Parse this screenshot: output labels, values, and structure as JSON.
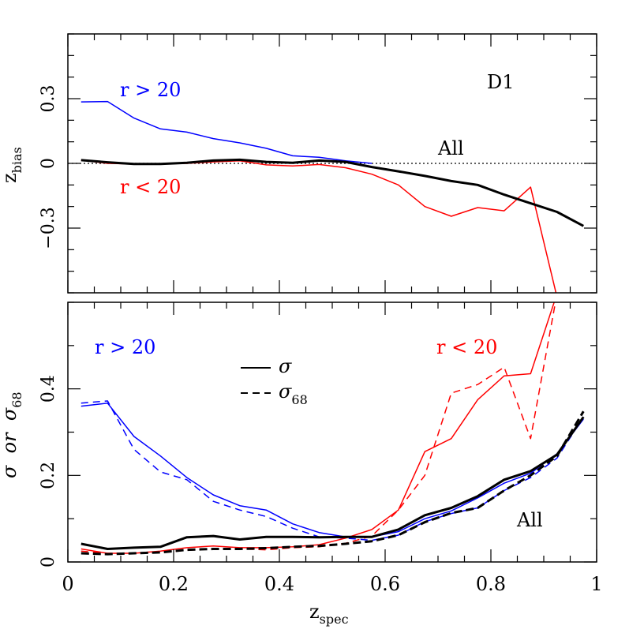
{
  "chart_data": [
    {
      "type": "line",
      "panel": "top",
      "xlabel_main": "z",
      "xlabel_sub": "spec",
      "ylabel_main": "z",
      "ylabel_sub": "bias",
      "xlim": [
        0,
        1
      ],
      "ylim": [
        -0.6,
        0.6
      ],
      "xticks": [
        0,
        0.2,
        0.4,
        0.6,
        0.8,
        1
      ],
      "xtick_labels": [
        "0",
        "0.2",
        "0.4",
        "0.6",
        "0.8",
        "1"
      ],
      "yticks": [
        -0.3,
        0,
        0.3
      ],
      "ytick_labels": [
        "−0.3",
        "0",
        "0.3"
      ],
      "annotations": [
        "D1",
        "r > 20",
        "r < 20",
        "All"
      ],
      "reference_line": {
        "y": 0,
        "style": "dotted"
      },
      "series": [
        {
          "name": "r > 20",
          "color": "#0000ff",
          "x": [
            0.025,
            0.075,
            0.125,
            0.175,
            0.225,
            0.275,
            0.325,
            0.375,
            0.425,
            0.475,
            0.525,
            0.575
          ],
          "y": [
            0.285,
            0.287,
            0.21,
            0.16,
            0.145,
            0.115,
            0.095,
            0.07,
            0.035,
            0.028,
            0.012,
            0.0
          ]
        },
        {
          "name": "r < 20",
          "color": "#ff0000",
          "x": [
            0.025,
            0.075,
            0.125,
            0.175,
            0.225,
            0.275,
            0.325,
            0.375,
            0.425,
            0.475,
            0.525,
            0.575,
            0.625,
            0.675,
            0.725,
            0.775,
            0.825,
            0.875,
            0.925
          ],
          "y": [
            0.015,
            0.0,
            -0.003,
            -0.003,
            0.0,
            0.007,
            0.012,
            -0.007,
            -0.012,
            -0.005,
            -0.02,
            -0.05,
            -0.1,
            -0.2,
            -0.245,
            -0.205,
            -0.22,
            -0.11,
            -0.62
          ]
        },
        {
          "name": "All",
          "color": "#000000",
          "width": 3,
          "x": [
            0.025,
            0.075,
            0.125,
            0.175,
            0.225,
            0.275,
            0.325,
            0.375,
            0.425,
            0.475,
            0.525,
            0.575,
            0.625,
            0.675,
            0.725,
            0.775,
            0.825,
            0.875,
            0.925,
            0.975
          ],
          "y": [
            0.015,
            0.005,
            -0.003,
            -0.003,
            0.003,
            0.013,
            0.017,
            0.007,
            0.003,
            0.013,
            0.007,
            -0.017,
            -0.037,
            -0.058,
            -0.082,
            -0.1,
            -0.145,
            -0.185,
            -0.225,
            -0.29
          ]
        }
      ]
    },
    {
      "type": "line",
      "panel": "bottom",
      "xlabel_main": "z",
      "xlabel_sub": "spec",
      "ylabel_main": "σ  or  σ",
      "ylabel_sub": "68",
      "xlim": [
        0,
        1
      ],
      "ylim": [
        0,
        0.6
      ],
      "xticks": [
        0,
        0.2,
        0.4,
        0.6,
        0.8,
        1
      ],
      "xtick_labels": [
        "0",
        "0.2",
        "0.4",
        "0.6",
        "0.8",
        "1"
      ],
      "yticks": [
        0,
        0.2,
        0.4
      ],
      "ytick_labels": [
        "0",
        "0.2",
        "0.4"
      ],
      "annotations": [
        "r > 20",
        "r < 20",
        "All"
      ],
      "legend": {
        "placement": "top-center",
        "entries": [
          {
            "label_main": "σ",
            "label_sub": "",
            "style": "solid"
          },
          {
            "label_main": "σ",
            "label_sub": "68",
            "style": "dashed"
          }
        ]
      },
      "series": [
        {
          "name": "r > 20 σ",
          "color": "#0000ff",
          "style": "solid",
          "x": [
            0.025,
            0.075,
            0.125,
            0.175,
            0.225,
            0.275,
            0.325,
            0.375,
            0.425,
            0.475,
            0.525,
            0.575,
            0.625,
            0.675,
            0.725,
            0.775,
            0.825,
            0.875,
            0.925,
            0.975
          ],
          "y": [
            0.36,
            0.367,
            0.29,
            0.245,
            0.195,
            0.155,
            0.13,
            0.12,
            0.088,
            0.068,
            0.058,
            0.058,
            0.07,
            0.1,
            0.118,
            0.148,
            0.182,
            0.205,
            0.25,
            0.33
          ]
        },
        {
          "name": "r > 20 σ68",
          "color": "#0000ff",
          "style": "dashed",
          "x": [
            0.025,
            0.075,
            0.125,
            0.175,
            0.225,
            0.275,
            0.325,
            0.375,
            0.425,
            0.475,
            0.525,
            0.575,
            0.625,
            0.675,
            0.725,
            0.775,
            0.825,
            0.875,
            0.925,
            0.975
          ],
          "y": [
            0.367,
            0.372,
            0.26,
            0.208,
            0.19,
            0.14,
            0.12,
            0.105,
            0.078,
            0.058,
            0.055,
            0.05,
            0.062,
            0.093,
            0.112,
            0.125,
            0.165,
            0.195,
            0.24,
            0.335
          ]
        },
        {
          "name": "r < 20 σ",
          "color": "#ff0000",
          "style": "solid",
          "x": [
            0.025,
            0.075,
            0.125,
            0.175,
            0.225,
            0.275,
            0.325,
            0.375,
            0.425,
            0.475,
            0.525,
            0.575,
            0.625,
            0.675,
            0.725,
            0.775,
            0.825,
            0.875,
            0.925
          ],
          "y": [
            0.03,
            0.02,
            0.02,
            0.025,
            0.033,
            0.037,
            0.033,
            0.033,
            0.035,
            0.04,
            0.055,
            0.075,
            0.12,
            0.255,
            0.285,
            0.375,
            0.43,
            0.435,
            0.62
          ]
        },
        {
          "name": "r < 20 σ68",
          "color": "#ff0000",
          "style": "dashed",
          "x": [
            0.025,
            0.075,
            0.125,
            0.175,
            0.225,
            0.275,
            0.325,
            0.375,
            0.425,
            0.475,
            0.525,
            0.575,
            0.625,
            0.675,
            0.725,
            0.775,
            0.825,
            0.875,
            0.925
          ],
          "y": [
            0.025,
            0.02,
            0.02,
            0.022,
            0.027,
            0.03,
            0.03,
            0.028,
            0.033,
            0.035,
            0.043,
            0.06,
            0.12,
            0.2,
            0.39,
            0.41,
            0.45,
            0.285,
            0.62
          ]
        },
        {
          "name": "All σ",
          "color": "#000000",
          "style": "solid",
          "width": 3,
          "x": [
            0.025,
            0.075,
            0.125,
            0.175,
            0.225,
            0.275,
            0.325,
            0.375,
            0.425,
            0.475,
            0.525,
            0.575,
            0.625,
            0.675,
            0.725,
            0.775,
            0.825,
            0.875,
            0.925,
            0.975
          ],
          "y": [
            0.042,
            0.03,
            0.033,
            0.035,
            0.057,
            0.06,
            0.052,
            0.058,
            0.058,
            0.057,
            0.058,
            0.058,
            0.075,
            0.108,
            0.125,
            0.152,
            0.19,
            0.21,
            0.248,
            0.335
          ]
        },
        {
          "name": "All σ68",
          "color": "#000000",
          "style": "dashed",
          "width": 3,
          "x": [
            0.025,
            0.075,
            0.125,
            0.175,
            0.225,
            0.275,
            0.325,
            0.375,
            0.425,
            0.475,
            0.525,
            0.575,
            0.625,
            0.675,
            0.725,
            0.775,
            0.825,
            0.875,
            0.925,
            0.975
          ],
          "y": [
            0.02,
            0.018,
            0.02,
            0.022,
            0.028,
            0.03,
            0.03,
            0.032,
            0.035,
            0.037,
            0.042,
            0.048,
            0.062,
            0.092,
            0.113,
            0.125,
            0.165,
            0.2,
            0.245,
            0.348
          ]
        }
      ]
    }
  ]
}
